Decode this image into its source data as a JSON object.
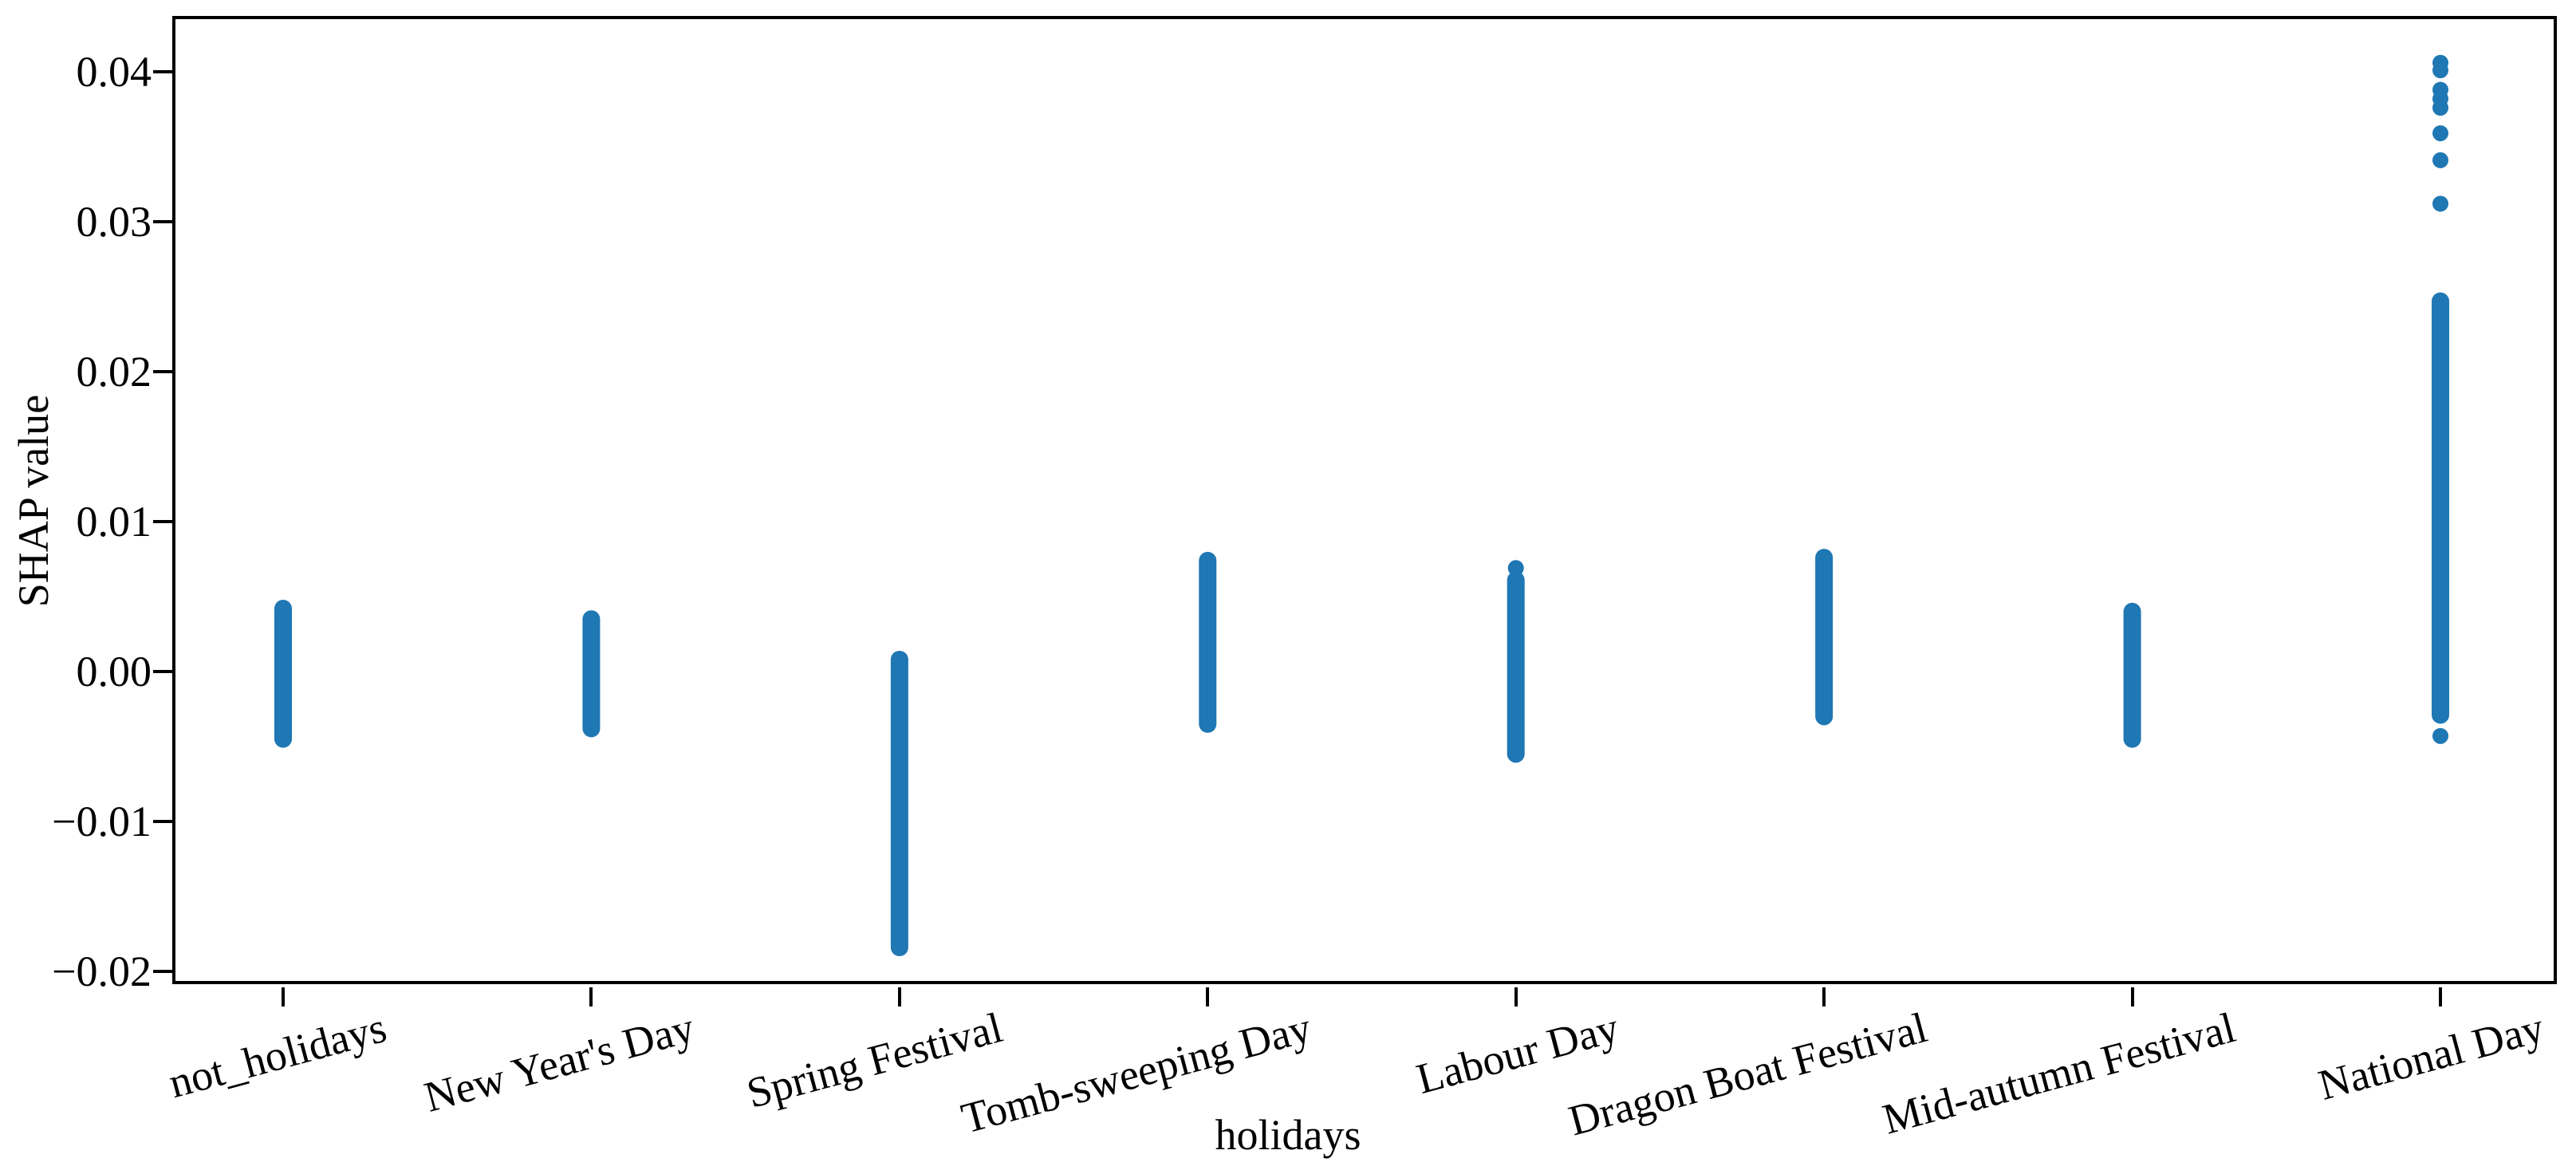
{
  "figure": {
    "background": "#ffffff",
    "axes_color": "#000000"
  },
  "chart_data": {
    "type": "scatter",
    "subtype": "categorical-strip-plot",
    "title": "",
    "xlabel": "holidays",
    "ylabel": "SHAP value",
    "marker_color": "#1f77b4",
    "grid": false,
    "legend": "none",
    "xtick_rotation_degrees": 15,
    "ylim": [
      -0.021,
      0.0436
    ],
    "yticks": [
      0.04,
      0.03,
      0.02,
      0.01,
      0.0,
      -0.01,
      -0.02
    ],
    "ytick_labels": [
      "0.04",
      "0.03",
      "0.02",
      "0.01",
      "0.00",
      "−0.01",
      "−0.02"
    ],
    "categories": [
      "not_holidays",
      "New Year's Day",
      "Spring Festival",
      "Tomb-sweeping Day",
      "Labour Day",
      "Dragon Boat Festival",
      "Mid-autumn Festival",
      "National Day"
    ],
    "series": [
      {
        "category": "not_holidays",
        "dense_range": [
          -0.0045,
          0.0042
        ],
        "isolated_points": []
      },
      {
        "category": "New Year's Day",
        "dense_range": [
          -0.0038,
          0.0035
        ],
        "isolated_points": []
      },
      {
        "category": "Spring Festival",
        "dense_range": [
          -0.0184,
          0.0008
        ],
        "isolated_points": []
      },
      {
        "category": "Tomb-sweeping Day",
        "dense_range": [
          -0.0035,
          0.0074
        ],
        "isolated_points": []
      },
      {
        "category": "Labour Day",
        "dense_range": [
          -0.0055,
          0.0061
        ],
        "isolated_points": [
          0.0069
        ]
      },
      {
        "category": "Dragon Boat Festival",
        "dense_range": [
          -0.003,
          0.0076
        ],
        "isolated_points": []
      },
      {
        "category": "Mid-autumn Festival",
        "dense_range": [
          -0.0045,
          0.004
        ],
        "isolated_points": []
      },
      {
        "category": "National Day",
        "dense_range": [
          -0.0029,
          0.0247
        ],
        "isolated_points": [
          0.0406,
          0.0401,
          0.0388,
          0.0382,
          0.0376,
          0.0359,
          0.0341,
          0.0312,
          -0.0043
        ]
      }
    ]
  }
}
